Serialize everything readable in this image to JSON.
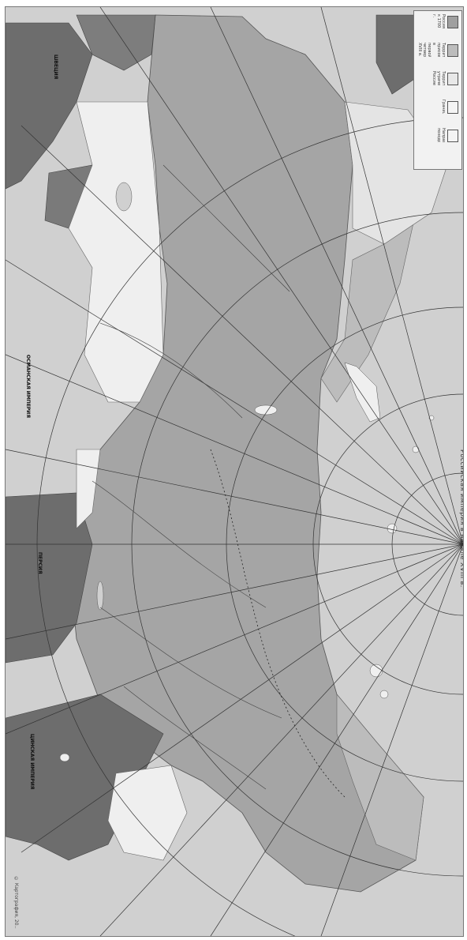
{
  "map": {
    "title": "Российская империя в начале XVIII в.",
    "copyright": "© Картография, 20..",
    "legend": [
      {
        "label": "Россия к 1700 г.",
        "color": "#a0a0a0"
      },
      {
        "label": "Территории, присоединённые в первой четверти XVIII в.",
        "color": "#bcbcbc"
      },
      {
        "label": "Территории, утраченные Россией",
        "color": "#e8e8e8"
      },
      {
        "label": "Границы",
        "color": "#f4f4f4"
      },
      {
        "label": "Направления походов",
        "color": "#f4f4f4"
      }
    ],
    "regions": {
      "sea_color": "#d0d0d0",
      "russia_color": "#a5a5a5",
      "neighbor_dark": "#6d6d6d",
      "neighbor_light": "#efefef",
      "coastal_strip": "#bcbcbc"
    },
    "labels": [
      {
        "id": "china",
        "text": "ЦИНСКАЯ ИМПЕРИЯ"
      },
      {
        "id": "persia",
        "text": "ПЕРСИЯ"
      },
      {
        "id": "ottoman",
        "text": "ОСМАНСКАЯ ИМПЕРИЯ"
      },
      {
        "id": "sweden",
        "text": "ШВЕЦИЯ"
      }
    ]
  }
}
